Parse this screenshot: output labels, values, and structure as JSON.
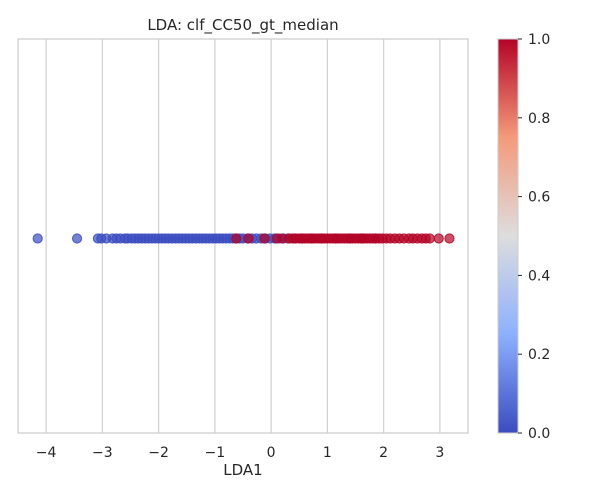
{
  "chart_data": {
    "type": "scatter",
    "title": "LDA: clf_CC50_gt_median",
    "xlabel": "LDA1",
    "ylabel": "",
    "xlim": [
      -4.5,
      3.5
    ],
    "xticks": [
      -4,
      -3,
      -2,
      -1,
      0,
      1,
      2,
      3
    ],
    "xtick_labels": [
      "−4",
      "−3",
      "−2",
      "−1",
      "0",
      "1",
      "2",
      "3"
    ],
    "yticks": [],
    "grid": "vertical",
    "y_value": 0,
    "colormap": "coolwarm",
    "colorbar": {
      "range": [
        0.0,
        1.0
      ],
      "ticks": [
        0.0,
        0.2,
        0.4,
        0.6,
        0.8,
        1.0
      ],
      "tick_labels": [
        "0.0",
        "0.2",
        "0.4",
        "0.6",
        "0.8",
        "1.0"
      ]
    },
    "series": [
      {
        "class": 0,
        "color": "#3b4cc0",
        "x": [
          -4.15,
          -3.45,
          -3.08,
          -3.02,
          -2.93,
          -2.82,
          -2.75,
          -2.68,
          -2.6,
          -2.55,
          -2.48,
          -2.42,
          -2.36,
          -2.3,
          -2.24,
          -2.18,
          -2.12,
          -2.06,
          -2.0,
          -1.94,
          -1.88,
          -1.82,
          -1.76,
          -1.7,
          -1.64,
          -1.58,
          -1.52,
          -1.46,
          -1.4,
          -1.34,
          -1.28,
          -1.22,
          -1.16,
          -1.1,
          -1.04,
          -0.98,
          -0.92,
          -0.86,
          -0.8,
          -0.74,
          -0.68,
          -0.62,
          -0.56,
          -0.5,
          -0.42,
          -0.34,
          -0.26,
          -0.18,
          -0.1,
          -0.02,
          0.06,
          0.14,
          0.22,
          0.3,
          0.42,
          0.55,
          0.72,
          0.9,
          1.15,
          1.4,
          1.62,
          1.85
        ]
      },
      {
        "class": 1,
        "color": "#b40426",
        "x": [
          -0.62,
          -0.4,
          -0.12,
          0.1,
          0.2,
          0.32,
          0.38,
          0.44,
          0.5,
          0.55,
          0.6,
          0.65,
          0.7,
          0.75,
          0.8,
          0.85,
          0.9,
          0.95,
          1.0,
          1.05,
          1.1,
          1.15,
          1.2,
          1.25,
          1.3,
          1.35,
          1.4,
          1.45,
          1.5,
          1.55,
          1.6,
          1.65,
          1.7,
          1.75,
          1.8,
          1.86,
          1.92,
          1.98,
          2.05,
          2.12,
          2.2,
          2.28,
          2.36,
          2.45,
          2.52,
          2.6,
          2.68,
          2.75,
          2.82,
          2.98,
          3.17
        ]
      }
    ]
  }
}
